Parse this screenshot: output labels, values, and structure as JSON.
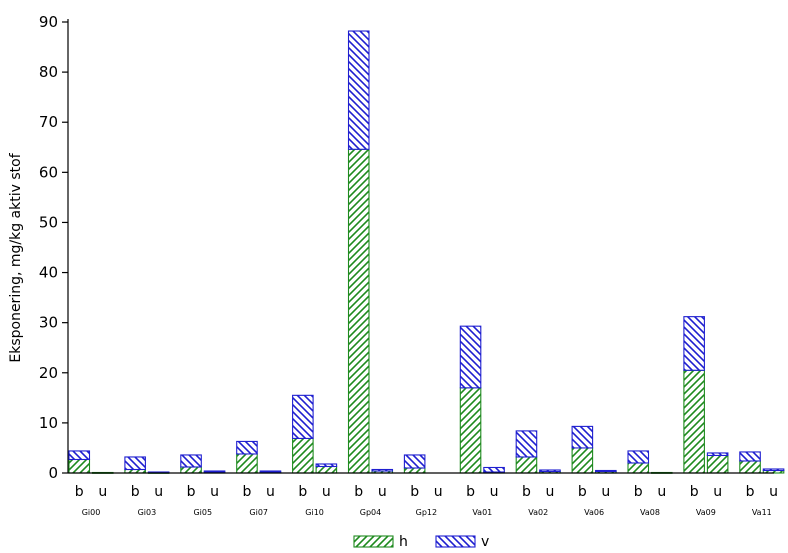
{
  "chart_data": {
    "type": "bar",
    "stacked": true,
    "title": "",
    "xlabel": "",
    "ylabel": "Eksponering, mg/kg aktiv stof",
    "ylim": [
      0,
      90
    ],
    "yticks": [
      0,
      10,
      20,
      30,
      40,
      50,
      60,
      70,
      80,
      90
    ],
    "grid": false,
    "legend_position": "bottom-center",
    "groups": [
      "Gi00",
      "Gi03",
      "Gi05",
      "Gi07",
      "Gi10",
      "Gp04",
      "Gp12",
      "Va01",
      "Va02",
      "Va06",
      "Va08",
      "Va09",
      "Va11"
    ],
    "subcategories": [
      "b",
      "u"
    ],
    "series": [
      {
        "name": "h",
        "pattern": "diagonal-up",
        "color": "#1e8a1e",
        "values": [
          [
            2.7,
            0.1
          ],
          [
            0.7,
            0.1
          ],
          [
            1.2,
            0.2
          ],
          [
            3.8,
            0.2
          ],
          [
            6.9,
            1.3
          ],
          [
            64.6,
            0.4
          ],
          [
            1.0,
            0.0
          ],
          [
            17.0,
            0.2
          ],
          [
            3.2,
            0.3
          ],
          [
            5.0,
            0.3
          ],
          [
            2.0,
            0.1
          ],
          [
            20.5,
            3.5
          ],
          [
            2.4,
            0.5
          ]
        ]
      },
      {
        "name": "v",
        "pattern": "diagonal-down",
        "color": "#1f1fd0",
        "values": [
          [
            1.7,
            0.0
          ],
          [
            2.5,
            0.1
          ],
          [
            2.4,
            0.2
          ],
          [
            2.5,
            0.2
          ],
          [
            8.6,
            0.5
          ],
          [
            23.6,
            0.3
          ],
          [
            2.6,
            0.0
          ],
          [
            12.3,
            0.9
          ],
          [
            5.2,
            0.3
          ],
          [
            4.3,
            0.2
          ],
          [
            2.4,
            0.0
          ],
          [
            10.7,
            0.5
          ],
          [
            1.8,
            0.3
          ]
        ]
      }
    ]
  }
}
